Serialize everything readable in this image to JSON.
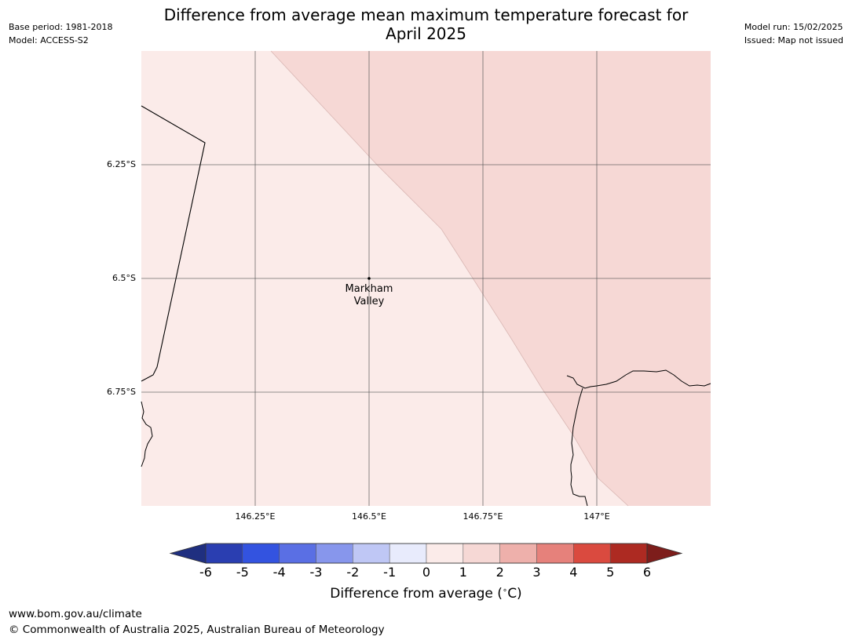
{
  "header": {
    "title_line1": "Difference from average mean maximum temperature forecast for",
    "title_line2": "April 2025",
    "base_period": "Base period: 1981-2018",
    "model": "Model: ACCESS-S2",
    "model_run": "Model run: 15/02/2025",
    "issued": "Issued: Map not issued"
  },
  "map": {
    "location_name_line1": "Markham",
    "location_name_line2": "Valley",
    "lat_labels": [
      "6.25°S",
      "6.5°S",
      "6.75°S"
    ],
    "lon_labels": [
      "146.25°E",
      "146.5°E",
      "146.75°E",
      "147°E"
    ],
    "fill_colors": {
      "low_anomaly": "#fbebe9",
      "high_anomaly": "#f6d8d5"
    }
  },
  "colorbar": {
    "ticks": [
      "-6",
      "-5",
      "-4",
      "-3",
      "-2",
      "-1",
      "0",
      "1",
      "2",
      "3",
      "4",
      "5",
      "6"
    ],
    "colors": [
      "#1f2f80",
      "#2a3eb1",
      "#3353e0",
      "#5a6fe4",
      "#8796ec",
      "#bfc7f5",
      "#e8ebfc",
      "#fbebe9",
      "#f6d8d5",
      "#eeb0ab",
      "#e6817b",
      "#da4a3f",
      "#ad2a22",
      "#7d1d1b"
    ],
    "title": "Difference from average ( C)",
    "degree_symbol": "∘"
  },
  "footer": {
    "url": "www.bom.gov.au/climate",
    "copyright": "© Commonwealth of Australia 2025, Australian Bureau of Meteorology"
  }
}
